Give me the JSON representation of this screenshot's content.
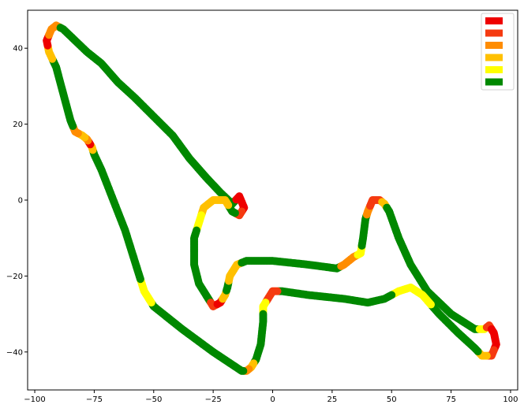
{
  "chart_data": {
    "type": "scatter",
    "title": "",
    "xlabel": "",
    "ylabel": "",
    "xlim": [
      -103,
      103
    ],
    "ylim": [
      -50,
      50
    ],
    "grid": false,
    "legend_placement": "top-right",
    "x_ticks": [
      -100,
      -75,
      -50,
      -25,
      0,
      25,
      50,
      75,
      100
    ],
    "y_ticks": [
      40,
      20,
      0,
      -20,
      -40
    ],
    "x_tick_labels": [
      "−100",
      "−75",
      "−50",
      "−25",
      "0",
      "25",
      "50",
      "75",
      "100"
    ],
    "y_tick_labels": [
      "40",
      "20",
      "0",
      "−20",
      "−40"
    ],
    "legend_colors": [
      "#ee0000",
      "#f53a10",
      "#ff8c00",
      "#ffc000",
      "#ffff00",
      "#008800"
    ],
    "track": [
      {
        "x": -88,
        "y": 45,
        "c": 5
      },
      {
        "x": -83,
        "y": 42,
        "c": 5
      },
      {
        "x": -78,
        "y": 39,
        "c": 5
      },
      {
        "x": -72,
        "y": 36,
        "c": 5
      },
      {
        "x": -65,
        "y": 31,
        "c": 5
      },
      {
        "x": -58,
        "y": 27,
        "c": 5
      },
      {
        "x": -50,
        "y": 22,
        "c": 5
      },
      {
        "x": -42,
        "y": 17,
        "c": 5
      },
      {
        "x": -35,
        "y": 11,
        "c": 5
      },
      {
        "x": -28,
        "y": 6,
        "c": 5
      },
      {
        "x": -22,
        "y": 2,
        "c": 5
      },
      {
        "x": -17,
        "y": -1,
        "c": 5
      },
      {
        "x": -14,
        "y": 1,
        "c": 0
      },
      {
        "x": -12,
        "y": -2,
        "c": 0
      },
      {
        "x": -14,
        "y": -4,
        "c": 1
      },
      {
        "x": -17,
        "y": -3,
        "c": 5
      },
      {
        "x": -20,
        "y": 0,
        "c": 3
      },
      {
        "x": -25,
        "y": 0,
        "c": 3
      },
      {
        "x": -29,
        "y": -2,
        "c": 3
      },
      {
        "x": -31,
        "y": -6,
        "c": 4
      },
      {
        "x": -33,
        "y": -10,
        "c": 5
      },
      {
        "x": -33,
        "y": -17,
        "c": 5
      },
      {
        "x": -31,
        "y": -22,
        "c": 5
      },
      {
        "x": -27,
        "y": -26,
        "c": 5
      },
      {
        "x": -25,
        "y": -28,
        "c": 1
      },
      {
        "x": -22,
        "y": -27,
        "c": 0
      },
      {
        "x": -20,
        "y": -25,
        "c": 3
      },
      {
        "x": -19,
        "y": -23,
        "c": 5
      },
      {
        "x": -18,
        "y": -20,
        "c": 3
      },
      {
        "x": -15,
        "y": -17,
        "c": 3
      },
      {
        "x": -11,
        "y": -16,
        "c": 5
      },
      {
        "x": 0,
        "y": -16,
        "c": 5
      },
      {
        "x": 15,
        "y": -17,
        "c": 5
      },
      {
        "x": 27,
        "y": -18,
        "c": 5
      },
      {
        "x": 30,
        "y": -17,
        "c": 2
      },
      {
        "x": 34,
        "y": -15,
        "c": 2
      },
      {
        "x": 37,
        "y": -14,
        "c": 4
      },
      {
        "x": 38,
        "y": -10,
        "c": 5
      },
      {
        "x": 39,
        "y": -5,
        "c": 5
      },
      {
        "x": 40,
        "y": -3,
        "c": 2
      },
      {
        "x": 42,
        "y": 0,
        "c": 1
      },
      {
        "x": 45,
        "y": 0,
        "c": 1
      },
      {
        "x": 47,
        "y": -1,
        "c": 3
      },
      {
        "x": 49,
        "y": -3,
        "c": 5
      },
      {
        "x": 53,
        "y": -10,
        "c": 5
      },
      {
        "x": 58,
        "y": -17,
        "c": 5
      },
      {
        "x": 65,
        "y": -24,
        "c": 5
      },
      {
        "x": 75,
        "y": -30,
        "c": 5
      },
      {
        "x": 85,
        "y": -34,
        "c": 5
      },
      {
        "x": 89,
        "y": -34,
        "c": 4
      },
      {
        "x": 91,
        "y": -33,
        "c": 1
      },
      {
        "x": 93,
        "y": -35,
        "c": 0
      },
      {
        "x": 94,
        "y": -38,
        "c": 0
      },
      {
        "x": 92,
        "y": -41,
        "c": 1
      },
      {
        "x": 88,
        "y": -41,
        "c": 3
      },
      {
        "x": 85,
        "y": -39,
        "c": 5
      },
      {
        "x": 78,
        "y": -35,
        "c": 5
      },
      {
        "x": 70,
        "y": -30,
        "c": 5
      },
      {
        "x": 63,
        "y": -25,
        "c": 4
      },
      {
        "x": 58,
        "y": -23,
        "c": 4
      },
      {
        "x": 53,
        "y": -24,
        "c": 4
      },
      {
        "x": 47,
        "y": -26,
        "c": 5
      },
      {
        "x": 40,
        "y": -27,
        "c": 5
      },
      {
        "x": 30,
        "y": -26,
        "c": 5
      },
      {
        "x": 15,
        "y": -25,
        "c": 5
      },
      {
        "x": 4,
        "y": -24,
        "c": 5
      },
      {
        "x": 0,
        "y": -24,
        "c": 1
      },
      {
        "x": -2,
        "y": -26,
        "c": 1
      },
      {
        "x": -4,
        "y": -28,
        "c": 4
      },
      {
        "x": -4,
        "y": -32,
        "c": 5
      },
      {
        "x": -5,
        "y": -38,
        "c": 5
      },
      {
        "x": -7,
        "y": -42,
        "c": 5
      },
      {
        "x": -9,
        "y": -44,
        "c": 3
      },
      {
        "x": -11,
        "y": -45,
        "c": 2
      },
      {
        "x": -13,
        "y": -45,
        "c": 5
      },
      {
        "x": -25,
        "y": -40,
        "c": 5
      },
      {
        "x": -38,
        "y": -34,
        "c": 5
      },
      {
        "x": -50,
        "y": -28,
        "c": 5
      },
      {
        "x": -52,
        "y": -26,
        "c": 4
      },
      {
        "x": -54,
        "y": -24,
        "c": 4
      },
      {
        "x": -57,
        "y": -18,
        "c": 5
      },
      {
        "x": -62,
        "y": -8,
        "c": 5
      },
      {
        "x": -67,
        "y": 0,
        "c": 5
      },
      {
        "x": -72,
        "y": 8,
        "c": 5
      },
      {
        "x": -75,
        "y": 12,
        "c": 5
      },
      {
        "x": -76,
        "y": 14,
        "c": 3
      },
      {
        "x": -77,
        "y": 15,
        "c": 0
      },
      {
        "x": -78,
        "y": 16,
        "c": 2
      },
      {
        "x": -80,
        "y": 17,
        "c": 3
      },
      {
        "x": -83,
        "y": 18,
        "c": 2
      },
      {
        "x": -85,
        "y": 21,
        "c": 5
      },
      {
        "x": -88,
        "y": 28,
        "c": 5
      },
      {
        "x": -91,
        "y": 35,
        "c": 5
      },
      {
        "x": -94,
        "y": 39,
        "c": 3
      },
      {
        "x": -95,
        "y": 42,
        "c": 0
      },
      {
        "x": -93,
        "y": 45,
        "c": 2
      },
      {
        "x": -91,
        "y": 46,
        "c": 2
      },
      {
        "x": -88,
        "y": 45,
        "c": 5
      }
    ]
  }
}
